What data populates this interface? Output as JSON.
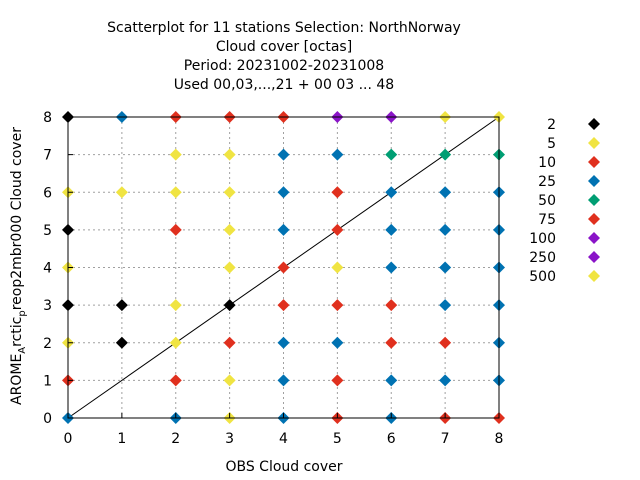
{
  "chart_data": {
    "type": "scatter",
    "title_lines": [
      "Scatterplot for   11 stations Selection: NorthNorway",
      "Cloud cover [octas]",
      "Period: 20231002-20231008",
      "Used  00,03,...,21  + 00 03 ... 48"
    ],
    "xlabel": "OBS Cloud cover",
    "ylabel_main": "AROME",
    "ylabel_sub1": "A",
    "ylabel_mid": "rctic",
    "ylabel_sub2": "p",
    "ylabel_tail": "reop2mbr000 Cloud cover",
    "xlim": [
      0,
      8
    ],
    "ylim": [
      0,
      8
    ],
    "xticks": [
      "0",
      "1",
      "2",
      "3",
      "4",
      "5",
      "6",
      "7",
      "8"
    ],
    "yticks": [
      "0",
      "1",
      "2",
      "3",
      "4",
      "5",
      "6",
      "7",
      "8"
    ],
    "grid": true,
    "legend_position": "right",
    "diagonal_line": true,
    "legend": [
      {
        "label": "2",
        "color": "#000000"
      },
      {
        "label": "5",
        "color": "#f0e442"
      },
      {
        "label": "10",
        "color": "#e0301e"
      },
      {
        "label": "25",
        "color": "#0072b2"
      },
      {
        "label": "50",
        "color": "#009e73"
      },
      {
        "label": "75",
        "color": "#e0301e"
      },
      {
        "label": "100",
        "color": "#8a14c8"
      },
      {
        "label": "250",
        "color": "#8a14c8"
      },
      {
        "label": "500",
        "color": "#f0e442"
      }
    ],
    "points": [
      {
        "x": 0,
        "y": 8,
        "color": "#000000"
      },
      {
        "x": 1,
        "y": 8,
        "color": "#0072b2"
      },
      {
        "x": 2,
        "y": 8,
        "color": "#e0301e"
      },
      {
        "x": 3,
        "y": 8,
        "color": "#e0301e"
      },
      {
        "x": 4,
        "y": 8,
        "color": "#e0301e"
      },
      {
        "x": 5,
        "y": 8,
        "color": "#8a14c8"
      },
      {
        "x": 6,
        "y": 8,
        "color": "#8a14c8"
      },
      {
        "x": 7,
        "y": 8,
        "color": "#f0e442"
      },
      {
        "x": 8,
        "y": 8,
        "color": "#f0e442"
      },
      {
        "x": 2,
        "y": 7,
        "color": "#f0e442"
      },
      {
        "x": 3,
        "y": 7,
        "color": "#f0e442"
      },
      {
        "x": 4,
        "y": 7,
        "color": "#0072b2"
      },
      {
        "x": 5,
        "y": 7,
        "color": "#0072b2"
      },
      {
        "x": 6,
        "y": 7,
        "color": "#009e73"
      },
      {
        "x": 7,
        "y": 7,
        "color": "#009e73"
      },
      {
        "x": 8,
        "y": 7,
        "color": "#009e73"
      },
      {
        "x": 0,
        "y": 6,
        "color": "#f0e442"
      },
      {
        "x": 1,
        "y": 6,
        "color": "#f0e442"
      },
      {
        "x": 2,
        "y": 6,
        "color": "#f0e442"
      },
      {
        "x": 3,
        "y": 6,
        "color": "#f0e442"
      },
      {
        "x": 4,
        "y": 6,
        "color": "#0072b2"
      },
      {
        "x": 5,
        "y": 6,
        "color": "#e0301e"
      },
      {
        "x": 6,
        "y": 6,
        "color": "#0072b2"
      },
      {
        "x": 7,
        "y": 6,
        "color": "#0072b2"
      },
      {
        "x": 8,
        "y": 6,
        "color": "#0072b2"
      },
      {
        "x": 0,
        "y": 5,
        "color": "#000000"
      },
      {
        "x": 2,
        "y": 5,
        "color": "#e0301e"
      },
      {
        "x": 3,
        "y": 5,
        "color": "#f0e442"
      },
      {
        "x": 4,
        "y": 5,
        "color": "#0072b2"
      },
      {
        "x": 5,
        "y": 5,
        "color": "#e0301e"
      },
      {
        "x": 6,
        "y": 5,
        "color": "#0072b2"
      },
      {
        "x": 7,
        "y": 5,
        "color": "#0072b2"
      },
      {
        "x": 8,
        "y": 5,
        "color": "#0072b2"
      },
      {
        "x": 0,
        "y": 4,
        "color": "#f0e442"
      },
      {
        "x": 3,
        "y": 4,
        "color": "#f0e442"
      },
      {
        "x": 4,
        "y": 4,
        "color": "#e0301e"
      },
      {
        "x": 5,
        "y": 4,
        "color": "#f0e442"
      },
      {
        "x": 6,
        "y": 4,
        "color": "#0072b2"
      },
      {
        "x": 7,
        "y": 4,
        "color": "#0072b2"
      },
      {
        "x": 8,
        "y": 4,
        "color": "#0072b2"
      },
      {
        "x": 0,
        "y": 3,
        "color": "#000000"
      },
      {
        "x": 1,
        "y": 3,
        "color": "#000000"
      },
      {
        "x": 2,
        "y": 3,
        "color": "#f0e442"
      },
      {
        "x": 3,
        "y": 3,
        "color": "#000000"
      },
      {
        "x": 4,
        "y": 3,
        "color": "#e0301e"
      },
      {
        "x": 5,
        "y": 3,
        "color": "#e0301e"
      },
      {
        "x": 6,
        "y": 3,
        "color": "#e0301e"
      },
      {
        "x": 7,
        "y": 3,
        "color": "#0072b2"
      },
      {
        "x": 8,
        "y": 3,
        "color": "#0072b2"
      },
      {
        "x": 0,
        "y": 2,
        "color": "#f0e442"
      },
      {
        "x": 1,
        "y": 2,
        "color": "#000000"
      },
      {
        "x": 2,
        "y": 2,
        "color": "#f0e442"
      },
      {
        "x": 3,
        "y": 2,
        "color": "#e0301e"
      },
      {
        "x": 4,
        "y": 2,
        "color": "#0072b2"
      },
      {
        "x": 5,
        "y": 2,
        "color": "#0072b2"
      },
      {
        "x": 6,
        "y": 2,
        "color": "#e0301e"
      },
      {
        "x": 7,
        "y": 2,
        "color": "#e0301e"
      },
      {
        "x": 8,
        "y": 2,
        "color": "#0072b2"
      },
      {
        "x": 0,
        "y": 1,
        "color": "#e0301e"
      },
      {
        "x": 2,
        "y": 1,
        "color": "#e0301e"
      },
      {
        "x": 3,
        "y": 1,
        "color": "#f0e442"
      },
      {
        "x": 4,
        "y": 1,
        "color": "#0072b2"
      },
      {
        "x": 5,
        "y": 1,
        "color": "#e0301e"
      },
      {
        "x": 6,
        "y": 1,
        "color": "#0072b2"
      },
      {
        "x": 7,
        "y": 1,
        "color": "#0072b2"
      },
      {
        "x": 8,
        "y": 1,
        "color": "#0072b2"
      },
      {
        "x": 0,
        "y": 0,
        "color": "#0072b2"
      },
      {
        "x": 2,
        "y": 0,
        "color": "#0072b2"
      },
      {
        "x": 3,
        "y": 0,
        "color": "#f0e442"
      },
      {
        "x": 4,
        "y": 0,
        "color": "#0072b2"
      },
      {
        "x": 5,
        "y": 0,
        "color": "#e0301e"
      },
      {
        "x": 6,
        "y": 0,
        "color": "#0072b2"
      },
      {
        "x": 7,
        "y": 0,
        "color": "#e0301e"
      },
      {
        "x": 8,
        "y": 0,
        "color": "#e0301e"
      }
    ]
  }
}
